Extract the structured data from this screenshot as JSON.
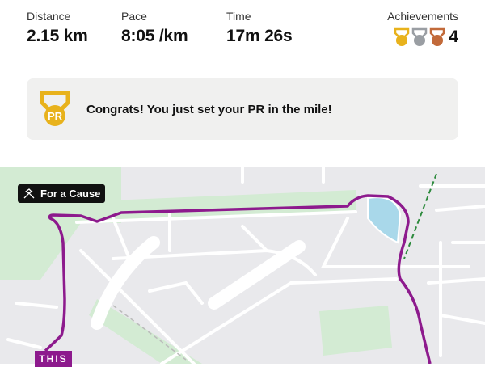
{
  "stats": [
    {
      "label": "Distance",
      "value": "2.15 km"
    },
    {
      "label": "Pace",
      "value": "8:05 /km"
    },
    {
      "label": "Time",
      "value": "17m 26s"
    }
  ],
  "achievements": {
    "label": "Achievements",
    "count": "4",
    "medals": [
      {
        "icon": "gold-medal-icon",
        "color": "#e8b21c"
      },
      {
        "icon": "silver-medal-icon",
        "color": "#9a9ea3"
      },
      {
        "icon": "bronze-medal-icon",
        "color": "#c26a3a"
      }
    ]
  },
  "banner": {
    "icon": "pr-medal-icon",
    "badge_text": "PR",
    "message": "Congrats! You just set your PR in the mile!"
  },
  "map": {
    "tag": "For a Cause",
    "tag_icon": "hands-icon",
    "bottom_label": "THIS",
    "route_color": "#8d1a8d"
  }
}
